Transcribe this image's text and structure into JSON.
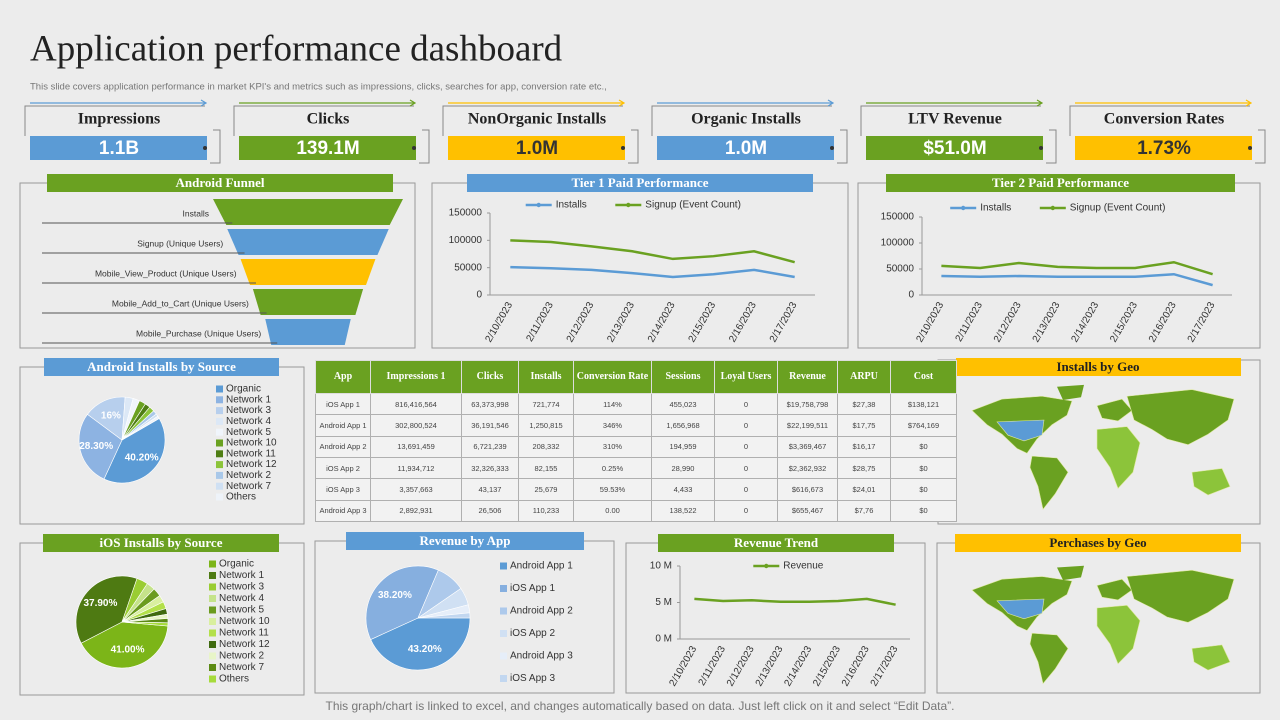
{
  "header": {
    "title": "Application performance dashboard",
    "subtitle": "This slide covers application performance in market KPI's  and metrics such as impressions, clicks, searches for app, conversion rate etc.,"
  },
  "kpis": [
    {
      "label": "Impressions",
      "value": "1.1B",
      "color": "#5b9bd5"
    },
    {
      "label": "Clicks",
      "value": "139.1M",
      "color": "#6aa121"
    },
    {
      "label": "NonOrganic Installs",
      "value": "1.0M",
      "color": "#ffc000"
    },
    {
      "label": "Organic Installs",
      "value": "1.0M",
      "color": "#5b9bd5"
    },
    {
      "label": "LTV Revenue",
      "value": "$51.0M",
      "color": "#6aa121"
    },
    {
      "label": "Conversion Rates",
      "value": "1.73%",
      "color": "#ffc000"
    }
  ],
  "chart_data": [
    {
      "type": "funnel",
      "title": "Android Funnel",
      "categories": [
        "Installs",
        "Signup (Unique Users)",
        "Mobile_View_Product  (Unique Users)",
        "Mobile_Add_to_Cart  (Unique Users)",
        "Mobile_Purchase  (Unique Users)"
      ],
      "values": [
        100,
        85,
        71,
        58,
        45
      ],
      "colors": [
        "#6aa121",
        "#5b9bd5",
        "#ffc000",
        "#6aa121",
        "#5b9bd5"
      ]
    },
    {
      "type": "line",
      "title": "Tier 1 Paid Performance",
      "x": [
        "2/10/2023",
        "2/11/2023",
        "2/12/2023",
        "2/13/2023",
        "2/14/2023",
        "2/15/2023",
        "2/16/2023",
        "2/17/2023"
      ],
      "series": [
        {
          "name": "Installs",
          "color": "#5b9bd5",
          "values": [
            51000,
            49000,
            46000,
            40000,
            33000,
            38000,
            46000,
            33000
          ]
        },
        {
          "name": "Signup (Event Count)",
          "color": "#6aa121",
          "values": [
            100000,
            97000,
            89000,
            80000,
            66000,
            71000,
            80000,
            60000
          ]
        }
      ],
      "ylim": [
        0,
        150000
      ],
      "yticks": [
        0,
        50000,
        100000,
        150000
      ]
    },
    {
      "type": "line",
      "title": "Tier 2 Paid Performance",
      "x": [
        "2/10/2023",
        "2/11/2023",
        "2/12/2023",
        "2/13/2023",
        "2/14/2023",
        "2/15/2023",
        "2/16/2023",
        "2/17/2023"
      ],
      "series": [
        {
          "name": "Installs",
          "color": "#5b9bd5",
          "values": [
            36500,
            35000,
            36500,
            35000,
            35000,
            35000,
            40000,
            19000
          ]
        },
        {
          "name": "Signup (Event Count)",
          "color": "#6aa121",
          "values": [
            56000,
            52000,
            61500,
            54000,
            52000,
            52000,
            63000,
            40000
          ]
        }
      ],
      "ylim": [
        0,
        150000
      ],
      "yticks": [
        0,
        50000,
        100000,
        150000
      ]
    },
    {
      "type": "pie",
      "title": "Android Installs by Source",
      "categories": [
        "Organic",
        "Network 1",
        "Network 3",
        "Network 4",
        "Network 5",
        "Network 10",
        "Network 11",
        "Network 12",
        "Network 2",
        "Network 7",
        "Others"
      ],
      "values": [
        40.2,
        28.3,
        16,
        3,
        2.5,
        2.5,
        2,
        2,
        1.5,
        1,
        1
      ],
      "value_labels": [
        "40.20%",
        "28.30%",
        "16%",
        null,
        null,
        null,
        null,
        null,
        null,
        null,
        null
      ],
      "colors": [
        "#5b9bd5",
        "#8db3e2",
        "#b7cfed",
        "#dce8f6",
        "#f0f5fb",
        "#6aa121",
        "#4f7e14",
        "#8cc43a",
        "#a9c8e9",
        "#cfe0f3",
        "#eef3f9"
      ],
      "start_angle": 60
    },
    {
      "type": "pie",
      "title": "iOS Installs by Source",
      "categories": [
        "Organic",
        "Network 1",
        "Network 3",
        "Network 4",
        "Network 5",
        "Network 10",
        "Network 11",
        "Network 12",
        "Network 2",
        "Network 7",
        "Others"
      ],
      "values": [
        41,
        37.9,
        4,
        3,
        3,
        2.5,
        2.5,
        2,
        1.5,
        1.5,
        1.1
      ],
      "value_labels": [
        "41.00%",
        "37.90%",
        null,
        null,
        null,
        null,
        null,
        null,
        null,
        null,
        null
      ],
      "colors": [
        "#7cb518",
        "#4e7a12",
        "#9acd32",
        "#c5e38a",
        "#6b9b1f",
        "#d9ef9f",
        "#b3e04a",
        "#3f6a0f",
        "#e8f5c8",
        "#5c8a15",
        "#a6db3b"
      ],
      "start_angle": 95
    },
    {
      "type": "pie",
      "title": "Revenue by App",
      "categories": [
        "Android App 1",
        "iOS App 1",
        "Android App 2",
        "iOS App 2",
        "Android App 3",
        "iOS App 3"
      ],
      "values": [
        43.2,
        38.2,
        9,
        5.5,
        2.5,
        1.6
      ],
      "value_labels": [
        "43.20%",
        "38.20%",
        null,
        null,
        null,
        null
      ],
      "colors": [
        "#5b9bd5",
        "#86afdf",
        "#adc9eb",
        "#d0e0f3",
        "#e6eef9",
        "#c2d7f0"
      ],
      "start_angle": 90
    },
    {
      "type": "line",
      "title": "Revenue Trend",
      "x": [
        "2/10/2023",
        "2/11/2023",
        "2/12/2023",
        "2/13/2023",
        "2/14/2023",
        "2/15/2023",
        "2/16/2023",
        "2/17/2023"
      ],
      "series": [
        {
          "name": "Revenue",
          "color": "#6aa121",
          "values": [
            5.5,
            5.2,
            5.3,
            5.1,
            5.1,
            5.2,
            5.5,
            4.7
          ]
        }
      ],
      "ylim": [
        0,
        10
      ],
      "yticks": [
        {
          "value": 0,
          "label": "0 M"
        },
        {
          "value": 5,
          "label": "5 M"
        },
        {
          "value": 10,
          "label": "10 M"
        }
      ]
    }
  ],
  "table": {
    "header": [
      "App",
      "Impressions 1",
      "Clicks",
      "Installs",
      "Conversion Rate",
      "Sessions",
      "Loyal Users",
      "Revenue",
      "ARPU",
      "Cost"
    ],
    "rows": [
      [
        "iOS App 1",
        "816,416,564",
        "63,373,998",
        "721,774",
        "114%",
        "455,023",
        "0",
        "$19,758,798",
        "$27,38",
        "$138,121"
      ],
      [
        "Android App 1",
        "302,800,524",
        "36,191,546",
        "1,250,815",
        "346%",
        "1,656,968",
        "0",
        "$22,199,511",
        "$17,75",
        "$764,169"
      ],
      [
        "Android App 2",
        "13,691,459",
        "6,721,239",
        "208,332",
        "310%",
        "194,959",
        "0",
        "$3,369,467",
        "$16,17",
        "$0"
      ],
      [
        "iOS App 2",
        "11,934,712",
        "32,326,333",
        "82,155",
        "0.25%",
        "28,990",
        "0",
        "$2,362,932",
        "$28,75",
        "$0"
      ],
      [
        "iOS App 3",
        "3,357,663",
        "43,137",
        "25,679",
        "59.53%",
        "4,433",
        "0",
        "$616,673",
        "$24,01",
        "$0"
      ],
      [
        "Android App 3",
        "2,892,931",
        "26,506",
        "110,233",
        "0.00",
        "138,522",
        "0",
        "$655,467",
        "$7,76",
        "$0"
      ]
    ]
  },
  "maps": [
    {
      "title": "Installs by Geo"
    },
    {
      "title": "Perchases by Geo"
    }
  ],
  "footer": "This graph/chart is linked to excel, and changes automatically based on data. Just left click on it and select “Edit Data”."
}
